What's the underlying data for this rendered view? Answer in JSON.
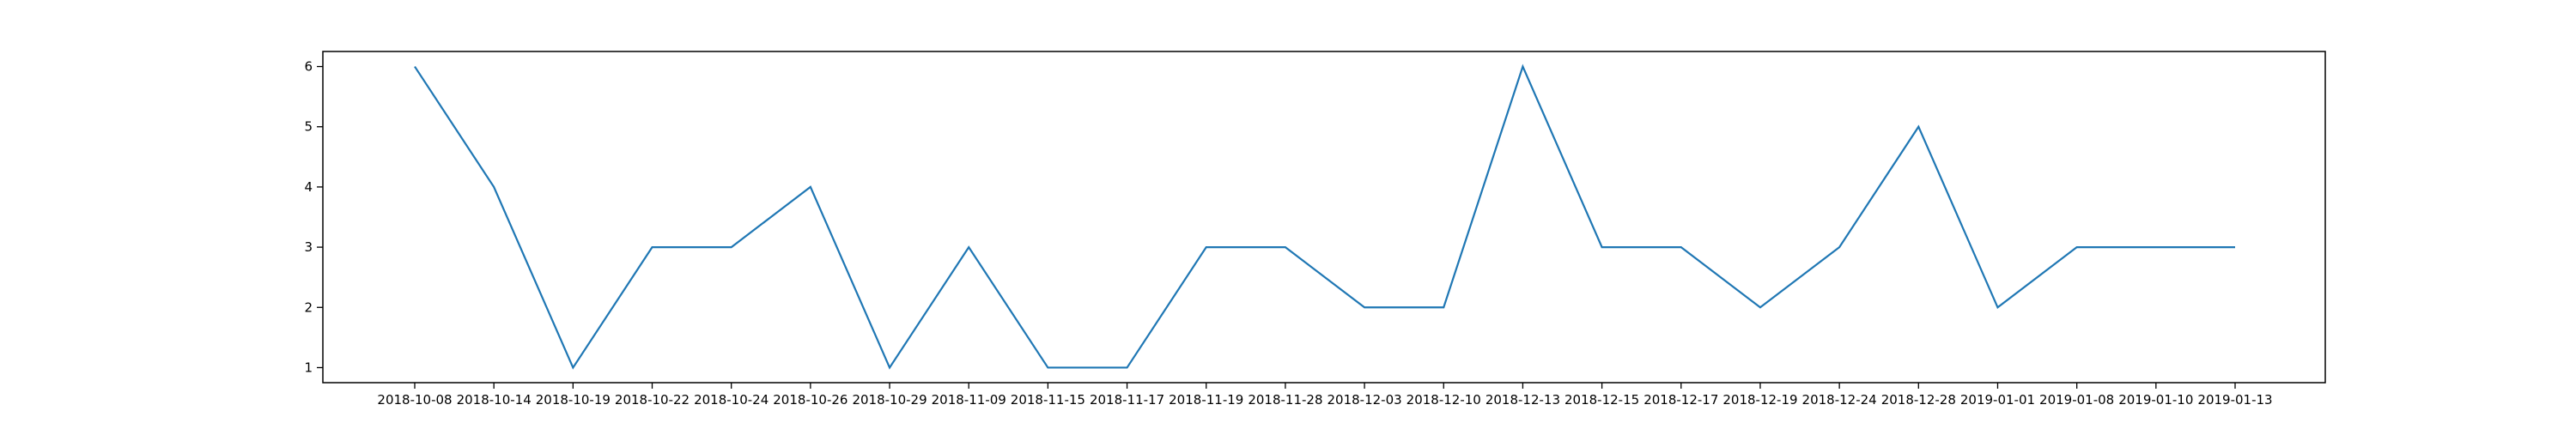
{
  "chart_data": {
    "type": "line",
    "title": "",
    "xlabel": "",
    "ylabel": "",
    "categories": [
      "2018-10-08",
      "2018-10-14",
      "2018-10-19",
      "2018-10-22",
      "2018-10-24",
      "2018-10-26",
      "2018-10-29",
      "2018-11-09",
      "2018-11-15",
      "2018-11-17",
      "2018-11-19",
      "2018-11-28",
      "2018-12-03",
      "2018-12-10",
      "2018-12-13",
      "2018-12-15",
      "2018-12-17",
      "2018-12-19",
      "2018-12-24",
      "2018-12-28",
      "2019-01-01",
      "2019-01-08",
      "2019-01-10",
      "2019-01-13"
    ],
    "series": [
      {
        "values": [
          6,
          4,
          1,
          3,
          3,
          4,
          1,
          3,
          1,
          1,
          3,
          3,
          2,
          2,
          6,
          3,
          3,
          2,
          3,
          5,
          2,
          3,
          3,
          3
        ],
        "color": "#1f77b4"
      }
    ],
    "y_ticks": [
      1,
      2,
      3,
      4,
      5,
      6
    ],
    "ylim": [
      0.75,
      6.25
    ],
    "grid": false,
    "legend": "none"
  }
}
